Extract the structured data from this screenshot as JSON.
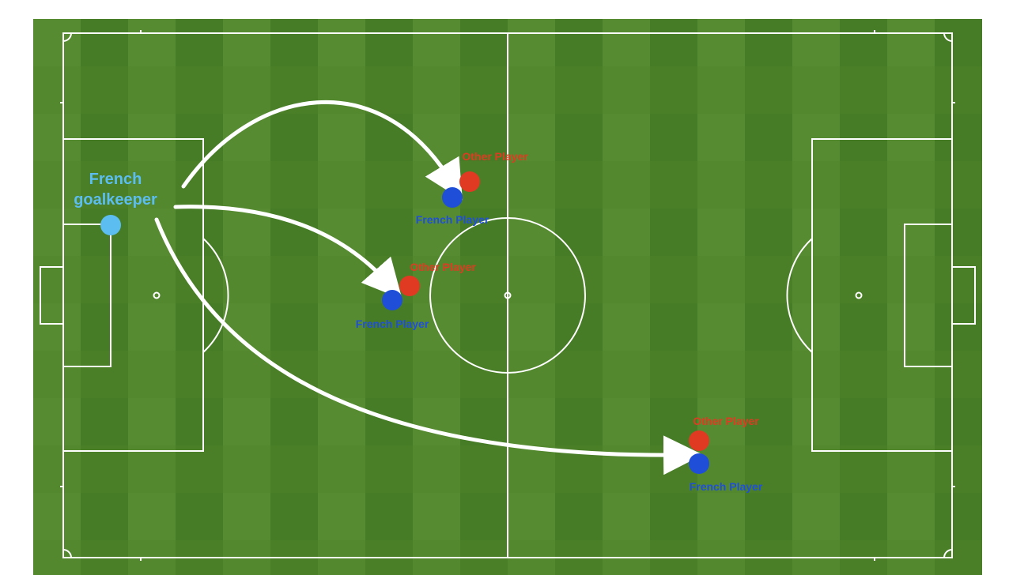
{
  "colors": {
    "background": "#ffffff",
    "grass_light": "#5a8a32",
    "grass_dark": "#3f7a22",
    "lines": "#ffffff",
    "goalkeeper": "#5bbdf0",
    "french_player": "#1f4fd8",
    "other_player": "#e03a22",
    "arrow": "#ffffff"
  },
  "goalkeeper": {
    "label_line1": "French",
    "label_line2": "goalkeeper"
  },
  "players": [
    {
      "french_label": "French Player",
      "other_label": "Other Player"
    },
    {
      "french_label": "French Player",
      "other_label": "Other Player"
    },
    {
      "french_label": "French Player",
      "other_label": "Other Player"
    }
  ]
}
